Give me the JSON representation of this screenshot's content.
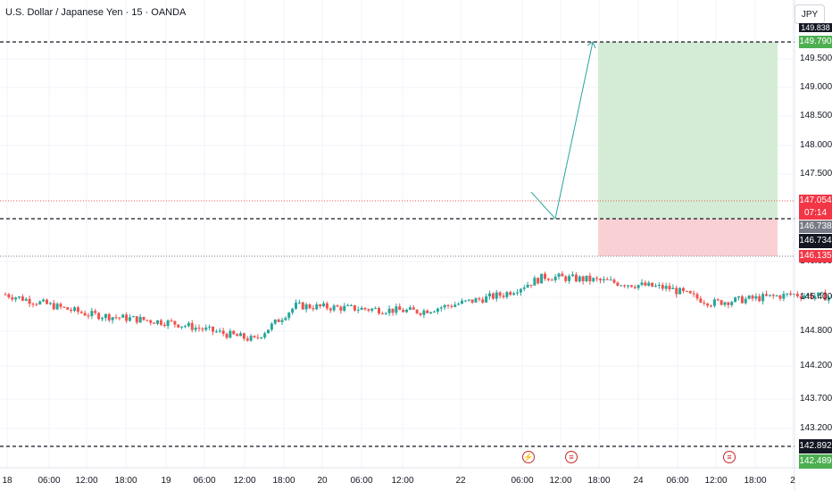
{
  "header": {
    "symbol_title": "U.S. Dollar / Japanese Yen · 15 · OANDA",
    "currency_button": "JPY"
  },
  "colors": {
    "up": "#26a69a",
    "down": "#ef5350",
    "target_zone": "#d4ecd5",
    "stop_zone": "#f9d1d4",
    "dashed_line": "#131722",
    "current_price_line": "#ef5350",
    "stop_line": "#787b86",
    "projection_arrow": "#26a69a"
  },
  "price_labels": {
    "top_partial": "149.838",
    "target": "149.790",
    "current": "147.054",
    "countdown": "07:14",
    "entry": "146.738",
    "crosshair": "146.734",
    "stop": "146.135",
    "lower_support": "142.892",
    "bottom": "142.489"
  },
  "events": [
    {
      "icon": "lightning-icon",
      "glyph": "⚡"
    },
    {
      "icon": "us-flag-icon",
      "glyph": "≡"
    },
    {
      "icon": "us-flag-icon",
      "glyph": "≡"
    }
  ],
  "chart_data": {
    "type": "candlestick",
    "title": "U.S. Dollar / Japanese Yen · 15 · OANDA",
    "y_axis_ticks": [
      "149.500",
      "149.000",
      "148.500",
      "148.000",
      "147.500",
      "146.000",
      "145.400",
      "144.800",
      "144.200",
      "143.700",
      "143.200"
    ],
    "x_axis_ticks": [
      "18",
      "06:00",
      "12:00",
      "18:00",
      "19",
      "06:00",
      "12:00",
      "18:00",
      "20",
      "06:00",
      "12:00",
      "22",
      "06:00",
      "12:00",
      "18:00",
      "24",
      "06:00",
      "12:00",
      "18:00",
      "2"
    ],
    "ylim": [
      142.4,
      150.0
    ],
    "anchors": [
      {
        "x": "Dec 18 00:00",
        "close": 145.45
      },
      {
        "x": "Dec 18 06:00",
        "close": 145.1
      },
      {
        "x": "Dec 18 12:00",
        "close": 144.95
      },
      {
        "x": "Dec 18 18:00",
        "close": 144.65
      },
      {
        "x": "Dec 18 21:00",
        "close": 145.25
      },
      {
        "x": "Dec 19 06:00",
        "close": 145.15
      },
      {
        "x": "Dec 19 12:00",
        "close": 145.45
      },
      {
        "x": "Dec 19 15:00",
        "close": 145.75
      },
      {
        "x": "Dec 19 18:00",
        "close": 145.7
      },
      {
        "x": "Dec 20 00:00",
        "close": 145.55
      },
      {
        "x": "Dec 20 03:00",
        "close": 145.3
      },
      {
        "x": "Dec 20 09:00",
        "close": 145.45
      },
      {
        "x": "Dec 20 12:00",
        "close": 145.4
      },
      {
        "x": "Dec 20 18:00",
        "close": 145.85
      },
      {
        "x": "Dec 20 22:00",
        "close": 146.1
      },
      {
        "x": "Dec 22 01:00",
        "close": 146.55
      },
      {
        "x": "Dec 22 02:00",
        "close": 146.1
      },
      {
        "x": "Dec 22 06:00",
        "close": 147.2
      },
      {
        "x": "Dec 22 07:00",
        "close": 147.05
      }
    ],
    "position": {
      "entry": 146.738,
      "target": 149.79,
      "stop": 146.135,
      "current_price": 147.054
    },
    "horizontal_levels": [
      149.79,
      146.738,
      142.892
    ],
    "grid": true
  }
}
